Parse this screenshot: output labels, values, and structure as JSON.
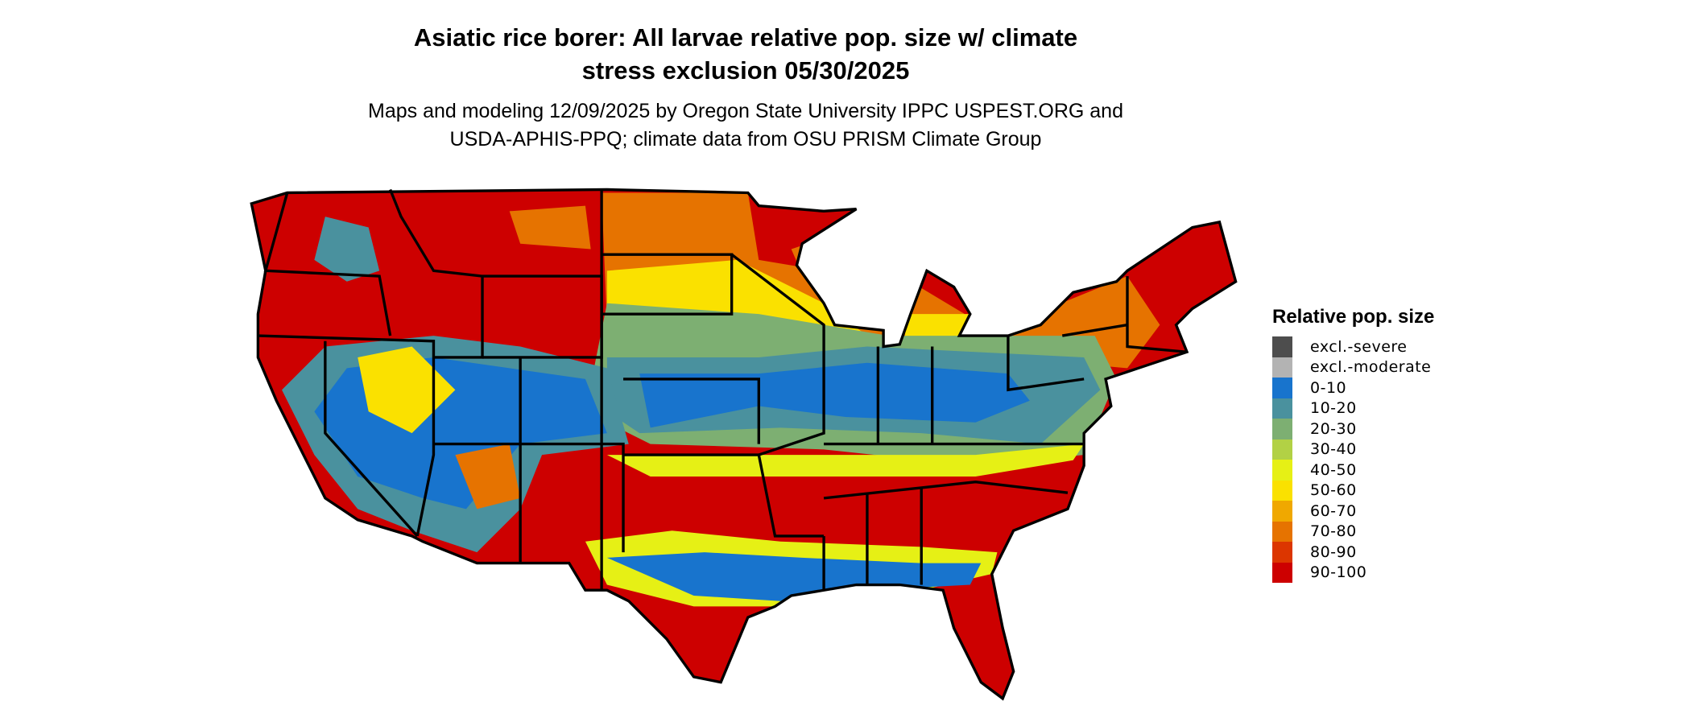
{
  "title_line1": "Asiatic rice borer: All larvae relative pop. size w/ climate",
  "title_line2": "stress exclusion 05/30/2025",
  "subtitle_line1": "Maps and modeling 12/09/2025 by Oregon State University IPPC USPEST.ORG and",
  "subtitle_line2": "USDA-APHIS-PPQ; climate data from OSU PRISM Climate Group",
  "legend": {
    "title": "Relative pop. size",
    "items": [
      {
        "label": "excl.-severe",
        "color": "#4d4d4d"
      },
      {
        "label": "excl.-moderate",
        "color": "#b3b3b3"
      },
      {
        "label": "0-10",
        "color": "#1874cd"
      },
      {
        "label": "10-20",
        "color": "#4a919e"
      },
      {
        "label": "20-30",
        "color": "#7daf72"
      },
      {
        "label": "30-40",
        "color": "#b2d145"
      },
      {
        "label": "40-50",
        "color": "#e6f015"
      },
      {
        "label": "50-60",
        "color": "#fae100"
      },
      {
        "label": "60-70",
        "color": "#f0a800"
      },
      {
        "label": "70-80",
        "color": "#e67300"
      },
      {
        "label": "80-90",
        "color": "#dc3600"
      },
      {
        "label": "90-100",
        "color": "#cd0000"
      }
    ]
  }
}
